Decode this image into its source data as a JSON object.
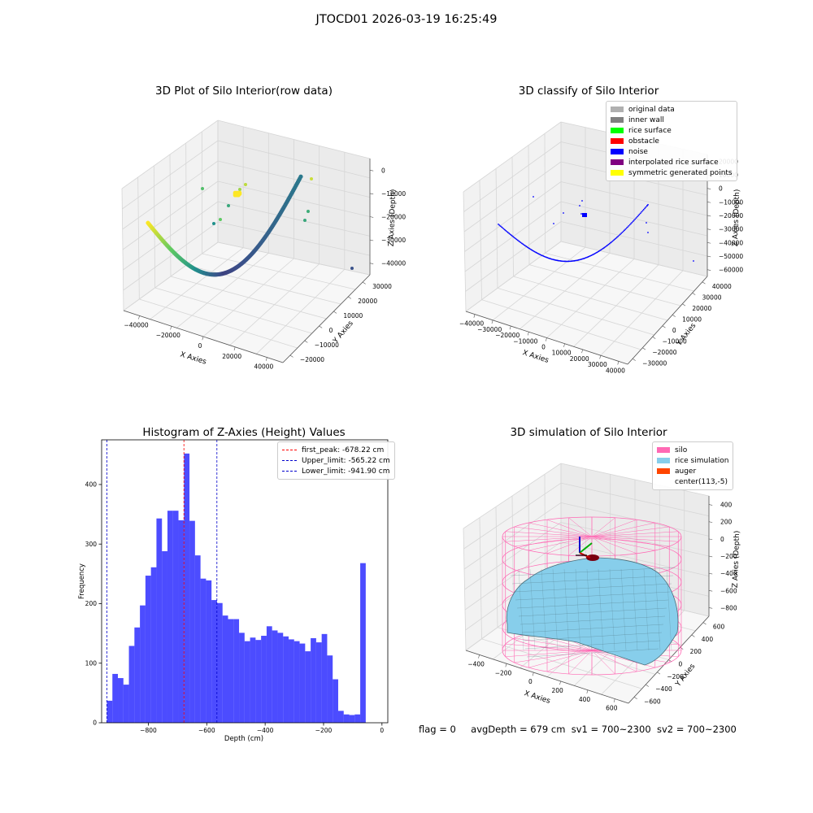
{
  "figure": {
    "suptitle": "JTOCD01 2026-03-19 16:25:49",
    "footer": {
      "flag": "flag = 0",
      "avg_depth": "avgDepth = 679 cm",
      "sv1": "sv1 = 700~2300",
      "sv2": "sv2 = 700~2300"
    }
  },
  "panels": {
    "p1": {
      "title": "3D Plot of Silo Interior(row data)",
      "xlabel": "X Axies",
      "ylabel": "Y Axies",
      "zlabel": "Z Axies (Depth)",
      "xticks": [
        "−40000",
        "−20000",
        "0",
        "20000",
        "40000"
      ],
      "yticks": [
        "−20000",
        "−10000",
        "0",
        "10000",
        "20000",
        "30000"
      ],
      "zticks": [
        "0",
        "−10000",
        "−20000",
        "−30000",
        "−40000"
      ]
    },
    "p2": {
      "title": "3D classify of Silo Interior",
      "xlabel": "X Axies",
      "ylabel": "Y Axies",
      "zlabel": "Z Axies (Depth)",
      "xticks": [
        "−40000",
        "−30000",
        "−20000",
        "−10000",
        "0",
        "10000",
        "20000",
        "30000",
        "40000"
      ],
      "yticks": [
        "−30000",
        "−20000",
        "−10000",
        "0",
        "10000",
        "20000",
        "30000",
        "40000"
      ],
      "zticks": [
        "20000",
        "10000",
        "0",
        "−10000",
        "−20000",
        "−30000",
        "−40000",
        "−50000",
        "−60000"
      ],
      "legend": [
        {
          "label": "original data",
          "color": "#b0b0b0"
        },
        {
          "label": "inner wall",
          "color": "#808080"
        },
        {
          "label": "rice surface",
          "color": "#00ff00"
        },
        {
          "label": "obstacle",
          "color": "#ff0000"
        },
        {
          "label": "noise",
          "color": "#0000ff"
        },
        {
          "label": "interpolated rice surface",
          "color": "#800080"
        },
        {
          "label": "symmetric generated points",
          "color": "#ffff00"
        }
      ]
    },
    "p4": {
      "title": "3D simulation of Silo Interior",
      "xlabel": "X Axies",
      "ylabel": "Y Axies",
      "zlabel": "Z Axies (Depth)",
      "xticks": [
        "−400",
        "−200",
        "0",
        "200",
        "400",
        "600"
      ],
      "yticks": [
        "−600",
        "−400",
        "−200",
        "0",
        "200",
        "400",
        "600"
      ],
      "zticks": [
        "400",
        "200",
        "0",
        "−200",
        "−400",
        "−600",
        "−800"
      ],
      "legend": [
        {
          "label": "silo",
          "color": "#ff69b4"
        },
        {
          "label": "rice simulation",
          "color": "#87ceeb"
        },
        {
          "label": "auger",
          "color": "#ff4500"
        },
        {
          "label": "center(113,-5)",
          "color": "#ffffff"
        }
      ]
    }
  },
  "chart_data": {
    "type": "bar",
    "title": "Histogram of Z-Axies (Height) Values",
    "xlabel": "Depth (cm)",
    "ylabel": "Frequency",
    "xlim": [
      -960,
      20
    ],
    "ylim": [
      0,
      475
    ],
    "xticks": [
      -800,
      -600,
      -400,
      -200,
      0
    ],
    "yticks": [
      0,
      100,
      200,
      300,
      400
    ],
    "bar_color": "#0000ff",
    "bins": {
      "start": -942,
      "width": 18.86,
      "values": [
        37,
        82,
        75,
        64,
        129,
        160,
        197,
        247,
        261,
        343,
        288,
        356,
        356,
        340,
        452,
        339,
        281,
        242,
        239,
        206,
        201,
        180,
        174,
        174,
        151,
        137,
        143,
        139,
        146,
        162,
        155,
        151,
        145,
        140,
        137,
        133,
        120,
        142,
        135,
        149,
        113,
        73,
        20,
        14,
        13,
        14,
        268
      ]
    },
    "vlines": [
      {
        "label": "first_peak: -678.22 cm",
        "x": -678.22,
        "color": "#ff0000"
      },
      {
        "label": "Upper_limit: -565.22 cm",
        "x": -565.22,
        "color": "#0000cc"
      },
      {
        "label": "Lower_limit: -941.90 cm",
        "x": -941.9,
        "color": "#0000cc"
      }
    ]
  }
}
